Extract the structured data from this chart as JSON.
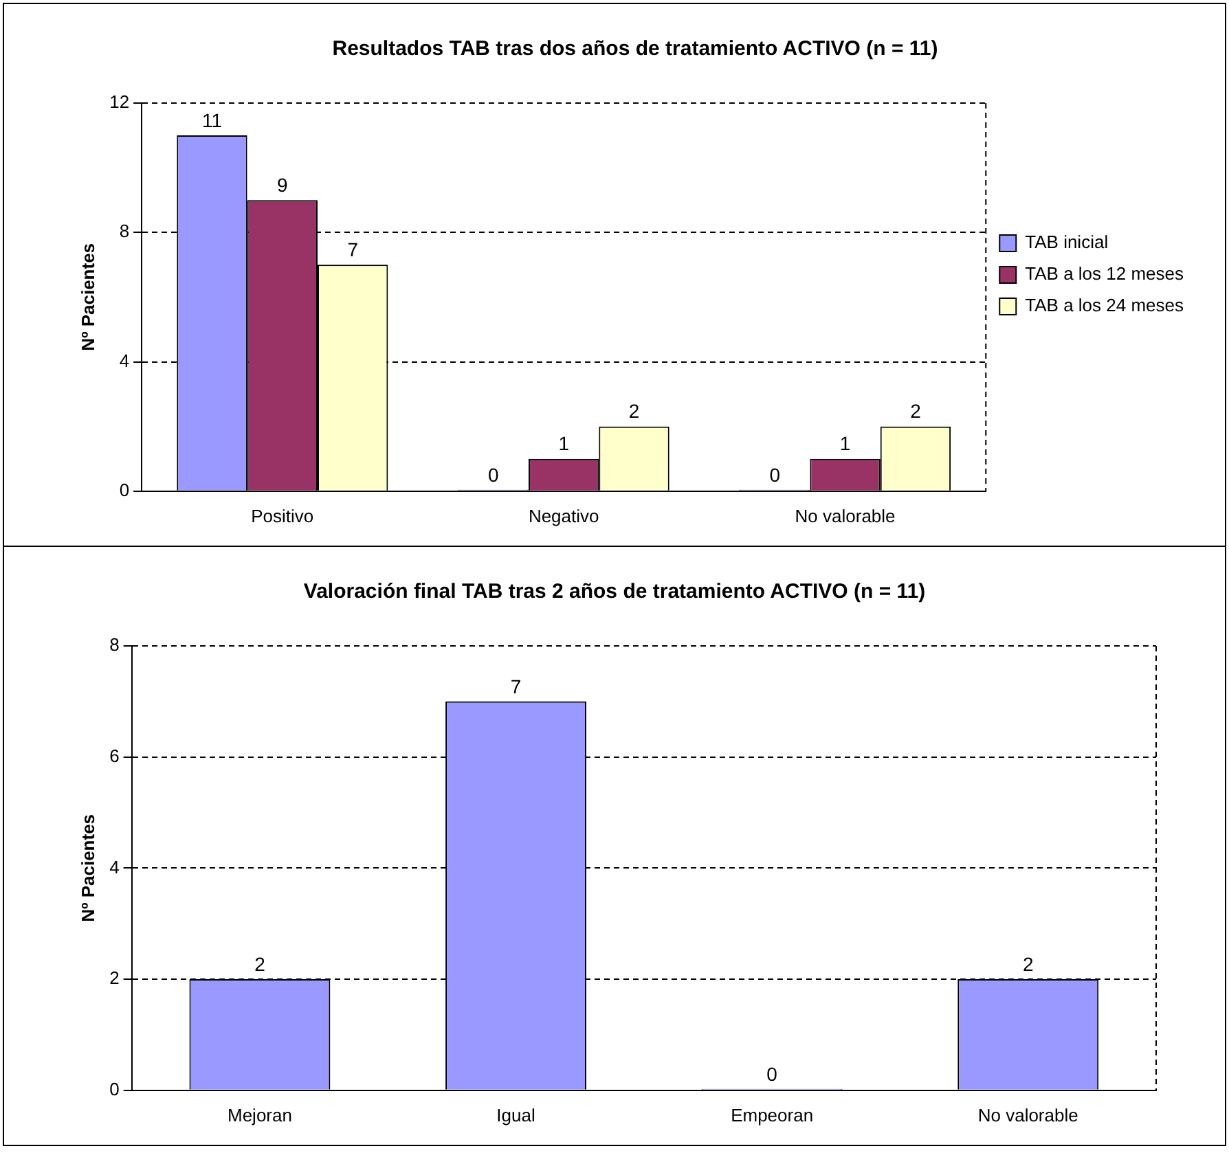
{
  "chart_data": [
    {
      "type": "bar",
      "title": "Resultados TAB tras dos años de tratamiento ACTIVO (n = 11)",
      "ylabel": "Nº Pacientes",
      "categories": [
        "Positivo",
        "Negativo",
        "No valorable"
      ],
      "series": [
        {
          "name": "TAB inicial",
          "color": "#9999ff",
          "values": [
            11,
            0,
            0
          ]
        },
        {
          "name": "TAB a los 12 meses",
          "color": "#993366",
          "values": [
            9,
            1,
            1
          ]
        },
        {
          "name": "TAB a los 24 meses",
          "color": "#ffffcc",
          "values": [
            7,
            2,
            2
          ]
        }
      ],
      "ylim": [
        0,
        12
      ],
      "yticks": [
        0,
        4,
        8,
        12
      ],
      "grid": "y",
      "legend": "right",
      "data_labels": true
    },
    {
      "type": "bar",
      "title": "Valoración final TAB tras 2 años de tratamiento ACTIVO (n = 11)",
      "ylabel": "Nº Pacientes",
      "categories": [
        "Mejoran",
        "Igual",
        "Empeoran",
        "No valorable"
      ],
      "values": [
        2,
        7,
        0,
        2
      ],
      "color": "#9999ff",
      "ylim": [
        0,
        8
      ],
      "yticks": [
        0,
        2,
        4,
        6,
        8
      ],
      "grid": "y",
      "data_labels": true
    }
  ]
}
